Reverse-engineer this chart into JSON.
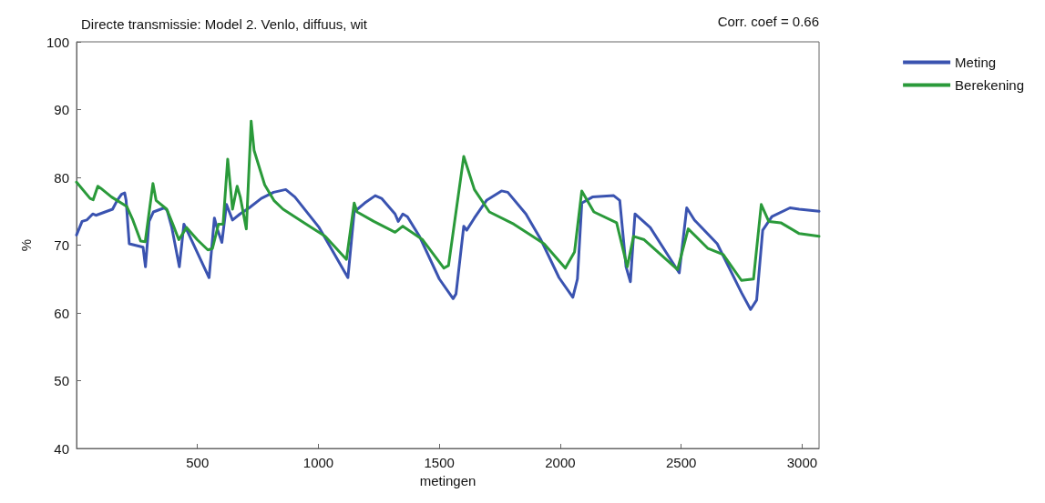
{
  "chart_data": {
    "type": "line",
    "title": "Directe transmissie: Model 2. Venlo, diffuus, wit",
    "annotations": [
      "Corr. coef = 0.66"
    ],
    "xlabel": "metingen",
    "ylabel": "%",
    "xlim": [
      0,
      3070
    ],
    "xticks": [
      500,
      1000,
      1500,
      2000,
      2500,
      3000
    ],
    "ylim": [
      40,
      100
    ],
    "yticks": [
      40,
      50,
      60,
      70,
      80,
      90,
      100
    ],
    "grid": false,
    "legend": "top right",
    "marker": "none",
    "line_style": "solid",
    "series": [
      {
        "name": "Meting",
        "color": "#3a53b0",
        "x": [
          0,
          23,
          42,
          67,
          80,
          149,
          168,
          186,
          199,
          205,
          218,
          275,
          285,
          300,
          318,
          363,
          375,
          394,
          425,
          444,
          463,
          548,
          570,
          582,
          601,
          620,
          645,
          676,
          714,
          764,
          815,
          865,
          903,
          1003,
          1053,
          1122,
          1148,
          1191,
          1235,
          1261,
          1317,
          1330,
          1349,
          1368,
          1418,
          1500,
          1557,
          1569,
          1601,
          1613,
          1645,
          1695,
          1757,
          1783,
          1858,
          1920,
          1995,
          2052,
          2071,
          2089,
          2133,
          2221,
          2246,
          2272,
          2290,
          2309,
          2372,
          2492,
          2523,
          2555,
          2649,
          2749,
          2787,
          2812,
          2837,
          2875,
          2950,
          2988,
          3070
        ],
        "values": [
          71.5,
          73.5,
          73.7,
          74.6,
          74.4,
          75.3,
          76.6,
          77.5,
          77.7,
          76.6,
          70.2,
          69.7,
          66.8,
          73.5,
          74.9,
          75.5,
          75.1,
          72.6,
          66.8,
          73.1,
          71.7,
          65.2,
          74,
          72.4,
          70.4,
          76,
          73.7,
          74.6,
          75.5,
          76.9,
          77.8,
          78.2,
          77.1,
          72.6,
          69.5,
          65.2,
          74.9,
          76.2,
          77.3,
          76.9,
          74.6,
          73.5,
          74.6,
          74.2,
          71.3,
          65,
          62.1,
          62.8,
          72.8,
          72.2,
          74,
          76.6,
          78,
          77.8,
          74.6,
          70.8,
          65.2,
          62.3,
          65,
          76.2,
          77.1,
          77.3,
          76.6,
          66.8,
          64.6,
          74.6,
          72.6,
          65.9,
          75.5,
          73.7,
          70.2,
          63,
          60.5,
          61.9,
          72.2,
          74.2,
          75.5,
          75.3,
          75
        ]
      },
      {
        "name": "Berekening",
        "color": "#2a9a3a",
        "x": [
          0,
          56,
          69,
          88,
          100,
          145,
          208,
          233,
          265,
          284,
          316,
          329,
          373,
          398,
          423,
          455,
          499,
          543,
          562,
          587,
          606,
          625,
          645,
          664,
          677,
          702,
          722,
          734,
          778,
          816,
          854,
          941,
          1028,
          1116,
          1148,
          1160,
          1229,
          1317,
          1349,
          1431,
          1519,
          1538,
          1601,
          1645,
          1707,
          1808,
          1933,
          2021,
          2059,
          2089,
          2139,
          2233,
          2277,
          2303,
          2347,
          2485,
          2529,
          2611,
          2674,
          2749,
          2799,
          2831,
          2862,
          2912,
          2988,
          3070
        ],
        "values": [
          79.3,
          76.9,
          76.7,
          78.7,
          78.4,
          77.1,
          75.7,
          73.7,
          70.6,
          70.5,
          79.1,
          76.6,
          75.3,
          73.1,
          70.8,
          72.6,
          70.8,
          69.3,
          69.5,
          73.1,
          73.1,
          82.7,
          75.3,
          78.7,
          77.1,
          72.4,
          88.3,
          84,
          78.9,
          76.6,
          75.3,
          73.3,
          71.3,
          67.9,
          76.2,
          74.9,
          73.5,
          71.9,
          72.8,
          70.8,
          66.6,
          67,
          83.1,
          78.2,
          74.9,
          73.1,
          70.2,
          66.6,
          69,
          78,
          74.9,
          73.3,
          66.8,
          71.3,
          70.8,
          66.4,
          72.4,
          69.5,
          68.6,
          64.8,
          65,
          76,
          73.5,
          73.3,
          71.7,
          71.3
        ]
      }
    ]
  }
}
